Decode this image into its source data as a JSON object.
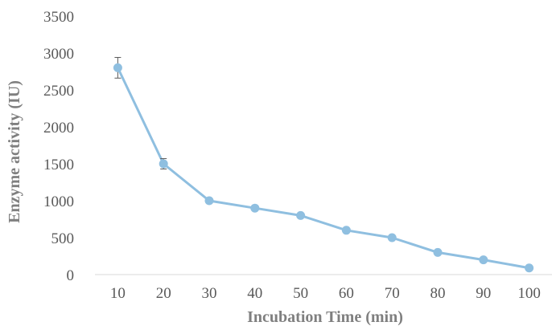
{
  "chart_data": {
    "type": "line",
    "title": "",
    "xlabel": "Incubation Time (min)",
    "ylabel": "Enzyme activity (IU)",
    "x": [
      10,
      20,
      30,
      40,
      50,
      60,
      70,
      80,
      90,
      100
    ],
    "x_tick_labels": [
      "10",
      "20",
      "30",
      "40",
      "50",
      "60",
      "70",
      "80",
      "90",
      "100"
    ],
    "y_tick_labels": [
      "0",
      "500",
      "1000",
      "1500",
      "2000",
      "2500",
      "3000",
      "3500"
    ],
    "ylim": [
      0,
      3500
    ],
    "grid": false,
    "legend": "none",
    "series": [
      {
        "values": [
          2800,
          1500,
          1000,
          900,
          800,
          600,
          500,
          300,
          200,
          90
        ],
        "error": [
          140,
          70,
          0,
          0,
          0,
          0,
          0,
          0,
          0,
          0
        ],
        "color": "#8fbfe0",
        "marker": "circle"
      }
    ]
  },
  "colors": {
    "series_line": "#8fbfe0",
    "axis_line": "#d9d9d9",
    "tick_text": "#595959",
    "axis_title_text": "#7f7f7f",
    "error_bar": "#595959"
  }
}
